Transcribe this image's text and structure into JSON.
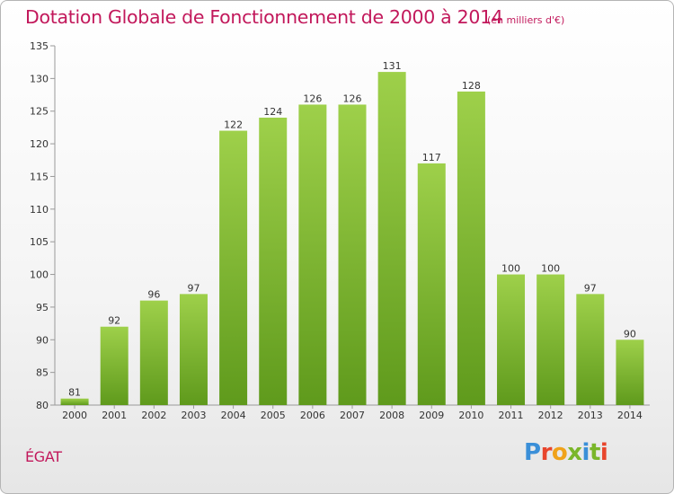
{
  "header": {
    "title": "Dotation Globale de Fonctionnement de 2000 à 2014",
    "subtitle": "(en milliers d'€)"
  },
  "commune": "ÉGAT",
  "logo": {
    "text": "Proxiti",
    "colors": [
      "#3a8fd8",
      "#e8452c",
      "#f0a21a",
      "#7ab62a",
      "#3a8fd8",
      "#7ab62a",
      "#e8452c"
    ]
  },
  "colors": {
    "bar_light": "#9ed04a",
    "bar_dark": "#5f9a1c",
    "title": "#c2185b",
    "axis": "#999999"
  },
  "chart_data": {
    "type": "bar",
    "title": "Dotation Globale de Fonctionnement de 2000 à 2014",
    "subtitle": "(en milliers d'€)",
    "categories": [
      "2000",
      "2001",
      "2002",
      "2003",
      "2004",
      "2005",
      "2006",
      "2007",
      "2008",
      "2009",
      "2010",
      "2011",
      "2012",
      "2013",
      "2014"
    ],
    "values": [
      81,
      92,
      96,
      97,
      122,
      124,
      126,
      126,
      131,
      117,
      128,
      100,
      100,
      97,
      90
    ],
    "ylim": [
      80,
      135
    ],
    "yticks": [
      80,
      85,
      90,
      95,
      100,
      105,
      110,
      115,
      120,
      125,
      130,
      135
    ],
    "grid": false,
    "legend": "none"
  }
}
